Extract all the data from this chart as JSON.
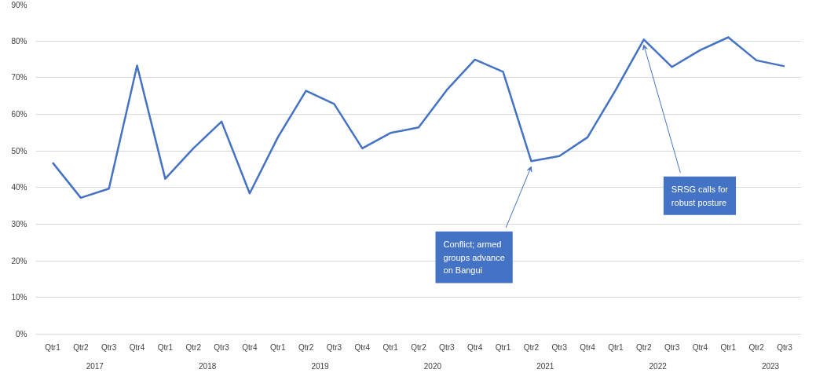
{
  "chart_data": {
    "type": "line",
    "categories": [
      "Qtr1",
      "Qtr2",
      "Qtr3",
      "Qtr4",
      "Qtr1",
      "Qtr2",
      "Qtr3",
      "Qtr4",
      "Qtr1",
      "Qtr2",
      "Qtr3",
      "Qtr4",
      "Qtr1",
      "Qtr2",
      "Qtr3",
      "Qtr4",
      "Qtr1",
      "Qtr2",
      "Qtr3",
      "Qtr4",
      "Qtr1",
      "Qtr2",
      "Qtr3",
      "Qtr4",
      "Qtr1",
      "Qtr2",
      "Qtr3"
    ],
    "series": [
      {
        "color": "#4472c4",
        "values": [
          46.8,
          37.2,
          39.7,
          73.3,
          42.4,
          50.7,
          58.0,
          38.4,
          53.7,
          66.4,
          62.8,
          50.7,
          54.9,
          56.4,
          66.6,
          74.9,
          71.6,
          47.2,
          48.6,
          53.7,
          66.6,
          80.4,
          72.9,
          77.5,
          81.0,
          74.7,
          73.1
        ]
      }
    ],
    "ylim": [
      0,
      90
    ],
    "yticks": [
      {
        "value": 0,
        "label": "0%"
      },
      {
        "value": 10,
        "label": "10%"
      },
      {
        "value": 20,
        "label": "20%"
      },
      {
        "value": 30,
        "label": "30%"
      },
      {
        "value": 40,
        "label": "40%"
      },
      {
        "value": 50,
        "label": "50%"
      },
      {
        "value": 60,
        "label": "60%"
      },
      {
        "value": 70,
        "label": "70%"
      },
      {
        "value": 80,
        "label": "80%"
      },
      {
        "value": 90,
        "label": "90%"
      }
    ],
    "grid": "y",
    "marker": "none",
    "line_style": "solid",
    "annotations": [
      "2017",
      "2018",
      "2019",
      "2020",
      "2021",
      "2022",
      "2023",
      "Conflict; armed groups advance on Bangui",
      "SRSG calls for robust posture"
    ]
  }
}
